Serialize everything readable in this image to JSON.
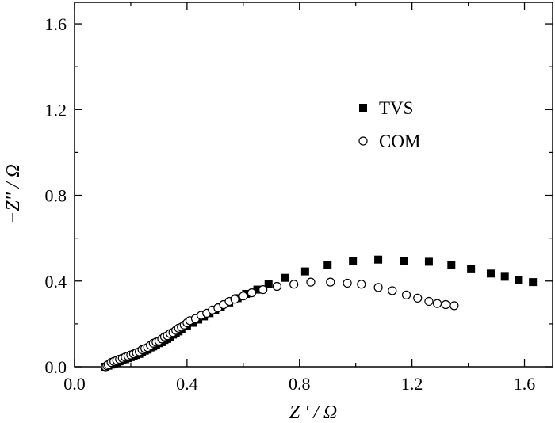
{
  "chart_data": {
    "type": "scatter",
    "xlabel": "Z ' / Ω",
    "ylabel": "−Z'' / Ω",
    "xlim": [
      0.0,
      1.7
    ],
    "ylim": [
      0.0,
      1.7
    ],
    "xticks": [
      0.0,
      0.4,
      0.8,
      1.2,
      1.6
    ],
    "xtick_labels": [
      "0.0",
      "0.4",
      "0.8",
      "1.2",
      "1.6"
    ],
    "yticks": [
      0.0,
      0.4,
      0.8,
      1.2,
      1.6
    ],
    "ytick_labels": [
      "0.0",
      "0.4",
      "0.8",
      "1.2",
      "1.6"
    ],
    "grid": false,
    "legend_position": "upper-center",
    "series": [
      {
        "name": "TVS",
        "marker": "filled-square",
        "color": "#000000",
        "x": [
          0.11,
          0.12,
          0.13,
          0.14,
          0.15,
          0.16,
          0.17,
          0.18,
          0.19,
          0.2,
          0.21,
          0.22,
          0.23,
          0.24,
          0.25,
          0.26,
          0.27,
          0.28,
          0.29,
          0.3,
          0.31,
          0.32,
          0.33,
          0.34,
          0.35,
          0.36,
          0.37,
          0.38,
          0.4,
          0.42,
          0.44,
          0.46,
          0.48,
          0.5,
          0.52,
          0.55,
          0.58,
          0.61,
          0.65,
          0.69,
          0.75,
          0.82,
          0.9,
          0.99,
          1.08,
          1.17,
          1.26,
          1.34,
          1.41,
          1.48,
          1.53,
          1.58,
          1.63
        ],
        "y": [
          0.0,
          0.005,
          0.01,
          0.015,
          0.02,
          0.025,
          0.03,
          0.035,
          0.04,
          0.045,
          0.05,
          0.055,
          0.06,
          0.07,
          0.075,
          0.08,
          0.09,
          0.095,
          0.1,
          0.11,
          0.115,
          0.125,
          0.13,
          0.14,
          0.15,
          0.155,
          0.165,
          0.175,
          0.19,
          0.205,
          0.22,
          0.235,
          0.25,
          0.265,
          0.28,
          0.3,
          0.32,
          0.34,
          0.36,
          0.385,
          0.415,
          0.445,
          0.475,
          0.495,
          0.5,
          0.495,
          0.49,
          0.475,
          0.455,
          0.435,
          0.42,
          0.405,
          0.395
        ]
      },
      {
        "name": "COM",
        "marker": "open-circle",
        "color": "#000000",
        "x": [
          0.11,
          0.115,
          0.12,
          0.13,
          0.14,
          0.15,
          0.16,
          0.17,
          0.18,
          0.19,
          0.2,
          0.21,
          0.22,
          0.23,
          0.24,
          0.25,
          0.26,
          0.27,
          0.28,
          0.29,
          0.3,
          0.31,
          0.32,
          0.33,
          0.34,
          0.35,
          0.36,
          0.37,
          0.38,
          0.39,
          0.4,
          0.41,
          0.43,
          0.45,
          0.47,
          0.49,
          0.51,
          0.53,
          0.55,
          0.57,
          0.6,
          0.63,
          0.67,
          0.72,
          0.78,
          0.84,
          0.91,
          0.97,
          1.02,
          1.08,
          1.13,
          1.18,
          1.22,
          1.26,
          1.29,
          1.32,
          1.35
        ],
        "y": [
          0.0,
          0.005,
          0.01,
          0.02,
          0.025,
          0.03,
          0.035,
          0.04,
          0.045,
          0.05,
          0.055,
          0.06,
          0.065,
          0.07,
          0.08,
          0.085,
          0.09,
          0.1,
          0.11,
          0.115,
          0.12,
          0.13,
          0.14,
          0.145,
          0.155,
          0.16,
          0.17,
          0.18,
          0.185,
          0.195,
          0.205,
          0.215,
          0.225,
          0.24,
          0.25,
          0.265,
          0.275,
          0.29,
          0.305,
          0.315,
          0.33,
          0.345,
          0.36,
          0.375,
          0.385,
          0.395,
          0.395,
          0.39,
          0.385,
          0.37,
          0.355,
          0.335,
          0.32,
          0.305,
          0.295,
          0.29,
          0.285
        ]
      }
    ]
  }
}
